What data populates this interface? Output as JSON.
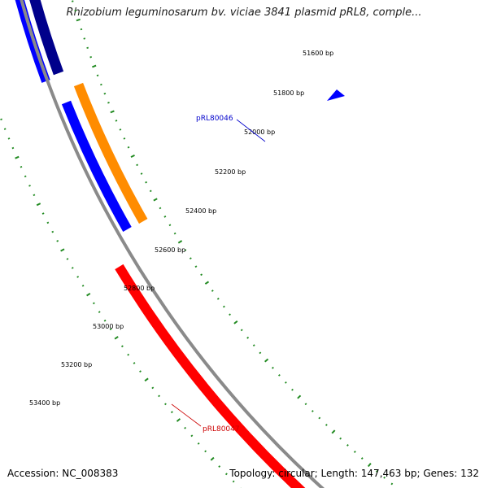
{
  "title": "Rhizobium leguminosarum bv. viciae 3841 plasmid pRL8, comple...",
  "accession": "Accession: NC_008383",
  "summary": "Topology: circular; Length: 147,463 bp; Genes: 132",
  "colors": {
    "backbone": "#8a8a8a",
    "forward_gene": "#0000ff",
    "forward_gene_dark": "#00008b",
    "orf": "#ff8c00",
    "reverse_gene": "#ff0000",
    "tick_inner": "#228b22",
    "tick_outer": "#228b22",
    "label_blue": "#0000cc",
    "label_red": "#cc0000"
  },
  "ruler": {
    "labels": [
      "51600 bp",
      "51800 bp",
      "52000 bp",
      "52200 bp",
      "52400 bp",
      "52600 bp",
      "52800 bp",
      "53000 bp",
      "53200 bp",
      "53400 bp"
    ]
  },
  "genes": [
    {
      "name": "pRL80046",
      "strand": "forward"
    },
    {
      "name": "pRL80047",
      "strand": "reverse"
    }
  ]
}
